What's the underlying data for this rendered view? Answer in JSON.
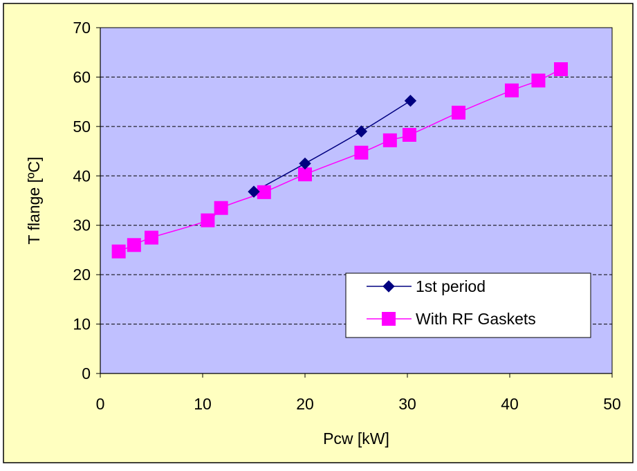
{
  "colors": {
    "chart_area": "#FFFFC0",
    "plot_area": "#C0C0FF",
    "border": "#000000",
    "gridline": "#000000",
    "series_1st_period": "#000080",
    "series_rf_gaskets": "#FF00FF"
  },
  "chart_data": {
    "type": "scatter",
    "title": "",
    "xlabel": "Pcw [kW]",
    "ylabel": "T flange [ºC]",
    "xlim": [
      0,
      50
    ],
    "ylim": [
      0,
      70
    ],
    "x_ticks": [
      0,
      10,
      20,
      30,
      40,
      50
    ],
    "y_ticks": [
      0,
      10,
      20,
      30,
      40,
      50,
      60,
      70
    ],
    "x_tick_labels": [
      "0",
      "10",
      "20",
      "30",
      "40",
      "50"
    ],
    "y_tick_labels": [
      "0",
      "10",
      "20",
      "30",
      "40",
      "50",
      "60",
      "70"
    ],
    "grid": {
      "horizontal": true,
      "vertical": false,
      "style": "dashed"
    },
    "legend_position": "bottom-right",
    "smoothed_lines": true,
    "series": [
      {
        "name": "1st period",
        "marker": "diamond",
        "color": "#000080",
        "points": [
          {
            "x": 15.0,
            "y": 36.8
          },
          {
            "x": 20.0,
            "y": 42.5
          },
          {
            "x": 25.5,
            "y": 49.0
          },
          {
            "x": 30.3,
            "y": 55.2
          }
        ]
      },
      {
        "name": "With RF Gaskets",
        "marker": "square",
        "color": "#FF00FF",
        "points": [
          {
            "x": 1.8,
            "y": 24.7
          },
          {
            "x": 3.3,
            "y": 26.0
          },
          {
            "x": 5.0,
            "y": 27.5
          },
          {
            "x": 10.5,
            "y": 31.0
          },
          {
            "x": 11.8,
            "y": 33.5
          },
          {
            "x": 16.0,
            "y": 36.7
          },
          {
            "x": 20.0,
            "y": 40.3
          },
          {
            "x": 25.5,
            "y": 44.7
          },
          {
            "x": 28.3,
            "y": 47.2
          },
          {
            "x": 30.2,
            "y": 48.3
          },
          {
            "x": 35.0,
            "y": 52.8
          },
          {
            "x": 40.2,
            "y": 57.3
          },
          {
            "x": 42.8,
            "y": 59.3
          },
          {
            "x": 45.0,
            "y": 61.6
          }
        ]
      }
    ]
  }
}
